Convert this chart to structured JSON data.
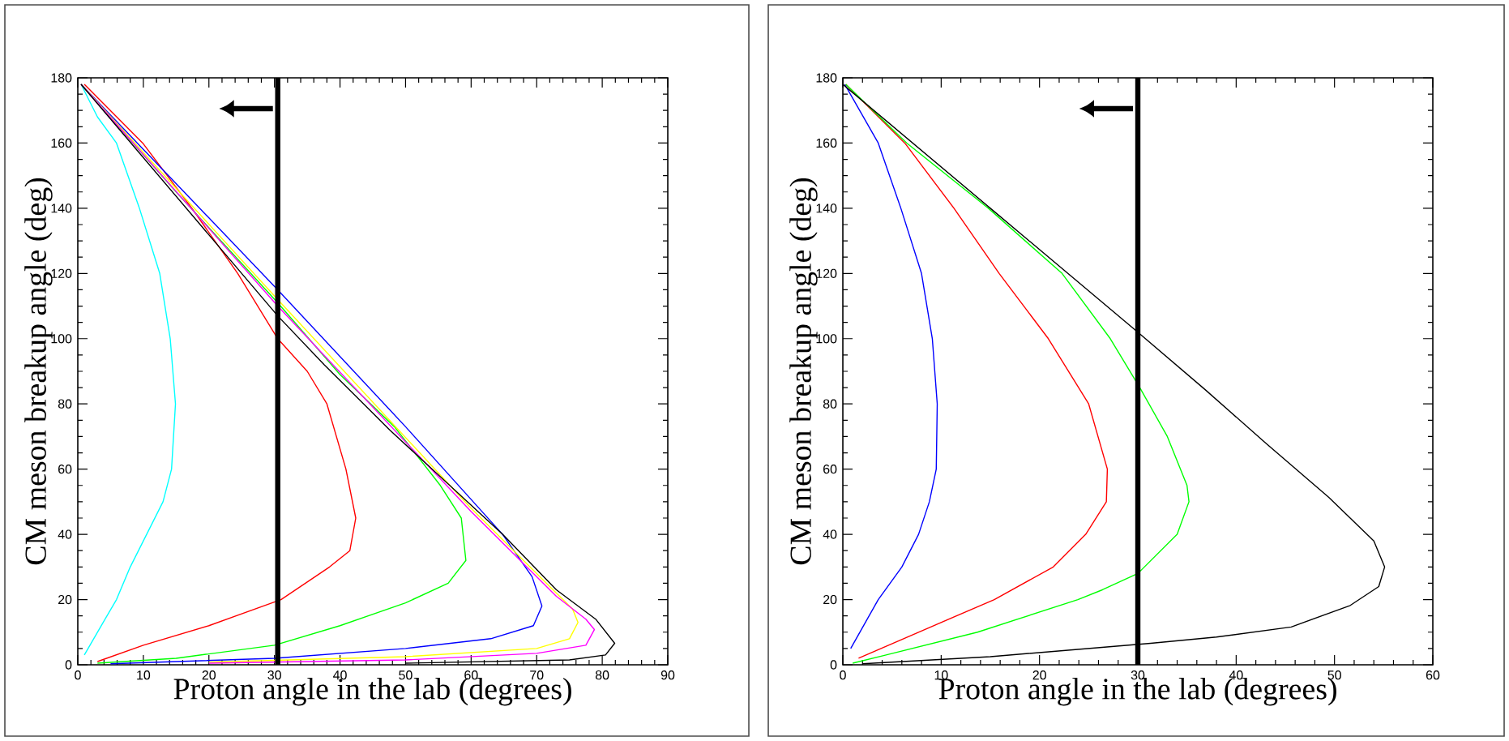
{
  "chart_data": [
    {
      "type": "line",
      "xlabel": "Proton angle in the lab (degrees)",
      "ylabel": "CM meson breakup angle (deg)",
      "xlim": [
        0,
        90
      ],
      "ylim": [
        0,
        180
      ],
      "xticks": [
        0,
        10,
        20,
        30,
        40,
        50,
        60,
        70,
        80,
        90
      ],
      "yticks": [
        0,
        20,
        40,
        60,
        80,
        100,
        120,
        140,
        160,
        180
      ],
      "grid": false,
      "marker": "none",
      "line_style": "solid",
      "ref_lines": [
        {
          "axis": "x",
          "value": 30.5,
          "color": "#000000"
        }
      ],
      "series": [
        {
          "color": "#00ffff",
          "x": [
            0.5,
            3,
            5.9,
            9.4,
            12.5,
            14.1,
            14.9,
            14.3,
            13,
            10.5,
            8,
            5.9,
            3,
            1
          ],
          "values": [
            178,
            168,
            160,
            140,
            120,
            100,
            80,
            60,
            50,
            40,
            30,
            20,
            10,
            3
          ]
        },
        {
          "color": "#ff0000",
          "x": [
            1,
            9.9,
            17.4,
            24.4,
            30.5,
            35,
            38,
            40.9,
            42.4,
            41.5,
            38.4,
            31,
            20,
            10,
            3
          ],
          "values": [
            178,
            160,
            140,
            120,
            100,
            90,
            80,
            60,
            45,
            35,
            30,
            20,
            12,
            6,
            1
          ]
        },
        {
          "color": "#00ff00",
          "x": [
            0.5,
            15,
            30.5,
            40,
            48.3,
            55.3,
            58.5,
            59.2,
            56.5,
            50,
            40,
            30,
            15,
            3
          ],
          "values": [
            178,
            145,
            111,
            89,
            73,
            55,
            45,
            32,
            25,
            19,
            12,
            6,
            2,
            0.5
          ]
        },
        {
          "color": "#0000ff",
          "x": [
            0.5,
            30.5,
            50,
            64.8,
            69.3,
            70.8,
            69.5,
            63,
            50,
            30,
            5
          ],
          "values": [
            178,
            115,
            73,
            40,
            27,
            18,
            12,
            8,
            5,
            2,
            0.3
          ]
        },
        {
          "color": "#ffff00",
          "x": [
            0.5,
            30.5,
            60,
            72,
            75.5,
            76.3,
            75,
            70,
            50,
            20
          ],
          "values": [
            178,
            112,
            48,
            24,
            17,
            13,
            8,
            5,
            2.5,
            0.8
          ]
        },
        {
          "color": "#ff00ff",
          "x": [
            0.5,
            30.5,
            60,
            73,
            77.5,
            78.8,
            77.5,
            70,
            50,
            20
          ],
          "values": [
            178,
            110,
            47,
            21,
            14,
            10.8,
            6,
            3.5,
            1.5,
            0.5
          ]
        },
        {
          "color": "#000000",
          "x": [
            0.5,
            30.5,
            37.6,
            47.6,
            64.8,
            73,
            79,
            81.9,
            80.5,
            75,
            50
          ],
          "values": [
            178,
            107,
            92,
            72,
            40,
            23,
            14,
            6.6,
            3,
            1.5,
            0.5
          ]
        }
      ]
    },
    {
      "type": "line",
      "xlabel": "Proton angle in the lab (degrees)",
      "ylabel": "CM meson breakup angle (deg)",
      "xlim": [
        0,
        60
      ],
      "ylim": [
        0,
        180
      ],
      "xticks": [
        0,
        10,
        20,
        30,
        40,
        50,
        60
      ],
      "yticks": [
        0,
        20,
        40,
        60,
        80,
        100,
        120,
        140,
        160,
        180
      ],
      "grid": false,
      "marker": "none",
      "line_style": "solid",
      "ref_lines": [
        {
          "axis": "x",
          "value": 30,
          "color": "#000000"
        }
      ],
      "series": [
        {
          "color": "#0000ff",
          "x": [
            0.2,
            3.6,
            5.9,
            8,
            9.1,
            9.6,
            9.5,
            8.8,
            7.7,
            6,
            3.6,
            0.8
          ],
          "values": [
            178,
            160,
            140,
            120,
            100,
            80,
            60,
            50,
            40,
            30,
            20,
            5
          ]
        },
        {
          "color": "#ff0000",
          "x": [
            0.3,
            6.3,
            11.3,
            15.9,
            20.9,
            25,
            26.9,
            26.8,
            24.7,
            21.4,
            15.4,
            7.7,
            1.6
          ],
          "values": [
            178,
            160,
            140,
            120,
            100,
            80,
            60,
            50,
            40,
            30,
            20,
            10,
            2
          ]
        },
        {
          "color": "#00ff00",
          "x": [
            0.3,
            6.5,
            14.8,
            22.3,
            27.2,
            30.2,
            33,
            35,
            35.2,
            34,
            30,
            26.4,
            23.9,
            13.7,
            4.4,
            1
          ],
          "values": [
            178,
            160,
            140,
            120,
            100,
            85,
            70,
            55,
            50,
            40,
            28,
            23,
            20,
            10,
            3,
            0.5
          ]
        },
        {
          "color": "#000000",
          "x": [
            0,
            15,
            30,
            36.8,
            43,
            49.4,
            54,
            55.1,
            54.5,
            51.6,
            45.6,
            38,
            31.3,
            15,
            2
          ],
          "values": [
            178,
            140,
            102,
            84.5,
            68,
            51.4,
            38,
            30,
            24,
            18.2,
            11.6,
            8.5,
            6.6,
            2.5,
            0.3
          ]
        }
      ]
    }
  ]
}
